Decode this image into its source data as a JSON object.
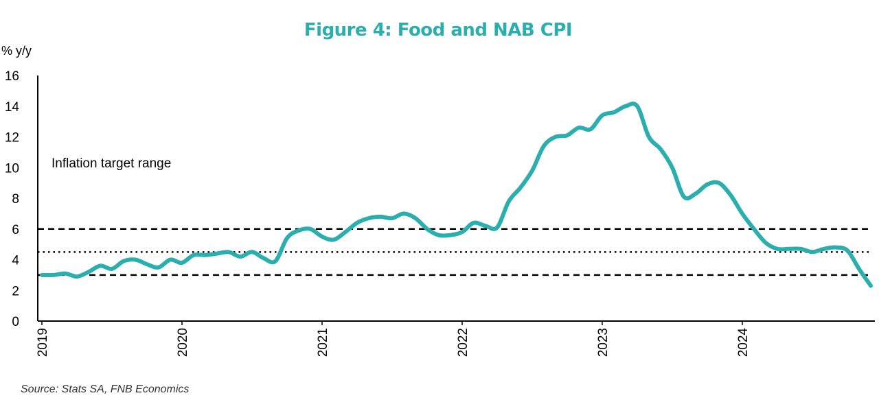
{
  "chart_data": {
    "type": "line",
    "title": "Figure 4: Food and NAB CPI",
    "ylabel": "% y/y",
    "source": "Source: Stats SA, FNB Economics",
    "ylim": [
      0,
      16
    ],
    "yticks": [
      0,
      2,
      4,
      6,
      8,
      10,
      12,
      14,
      16
    ],
    "xlim": [
      2019.0,
      2024.917
    ],
    "xticks": [
      "2019",
      "2020",
      "2021",
      "2022",
      "2023",
      "2024"
    ],
    "grid": false,
    "line_color": "#2BAEAE",
    "title_color": "#2BAEAE",
    "series": [
      {
        "x": [
          2019.0,
          2019.083,
          2019.167,
          2019.25,
          2019.333,
          2019.417,
          2019.5,
          2019.583,
          2019.667,
          2019.75,
          2019.833,
          2019.917,
          2020.0,
          2020.083,
          2020.167,
          2020.25,
          2020.333,
          2020.417,
          2020.5,
          2020.583,
          2020.667,
          2020.75,
          2020.833,
          2020.917,
          2021.0,
          2021.083,
          2021.167,
          2021.25,
          2021.333,
          2021.417,
          2021.5,
          2021.583,
          2021.667,
          2021.75,
          2021.833,
          2021.917,
          2022.0,
          2022.083,
          2022.167,
          2022.25,
          2022.333,
          2022.417,
          2022.5,
          2022.583,
          2022.667,
          2022.75,
          2022.833,
          2022.917,
          2023.0,
          2023.083,
          2023.167,
          2023.25,
          2023.333,
          2023.417,
          2023.5,
          2023.583,
          2023.667,
          2023.75,
          2023.833,
          2023.917,
          2024.0,
          2024.083,
          2024.167,
          2024.25,
          2024.333,
          2024.417,
          2024.5,
          2024.583,
          2024.667,
          2024.75,
          2024.833,
          2024.917
        ],
        "values": [
          3.0,
          3.0,
          3.1,
          2.9,
          3.2,
          3.6,
          3.4,
          3.9,
          4.0,
          3.7,
          3.5,
          4.0,
          3.8,
          4.3,
          4.3,
          4.4,
          4.5,
          4.2,
          4.5,
          4.1,
          3.9,
          5.4,
          5.9,
          6.0,
          5.5,
          5.3,
          5.8,
          6.4,
          6.7,
          6.8,
          6.7,
          7.0,
          6.7,
          6.0,
          5.6,
          5.6,
          5.8,
          6.4,
          6.2,
          6.1,
          7.8,
          8.7,
          9.8,
          11.4,
          12.0,
          12.1,
          12.6,
          12.5,
          13.4,
          13.6,
          14.0,
          14.0,
          12.0,
          11.2,
          10.0,
          8.1,
          8.3,
          8.9,
          9.0,
          8.2,
          7.0,
          6.0,
          5.1,
          4.7,
          4.7,
          4.7,
          4.5,
          4.7,
          4.8,
          4.6,
          3.4,
          2.3
        ]
      }
    ],
    "reference_lines": [
      {
        "value": 6.0,
        "style": "dashed"
      },
      {
        "value": 4.5,
        "style": "dotted"
      },
      {
        "value": 3.0,
        "style": "dashed"
      }
    ],
    "annotation": "Inflation target range"
  }
}
